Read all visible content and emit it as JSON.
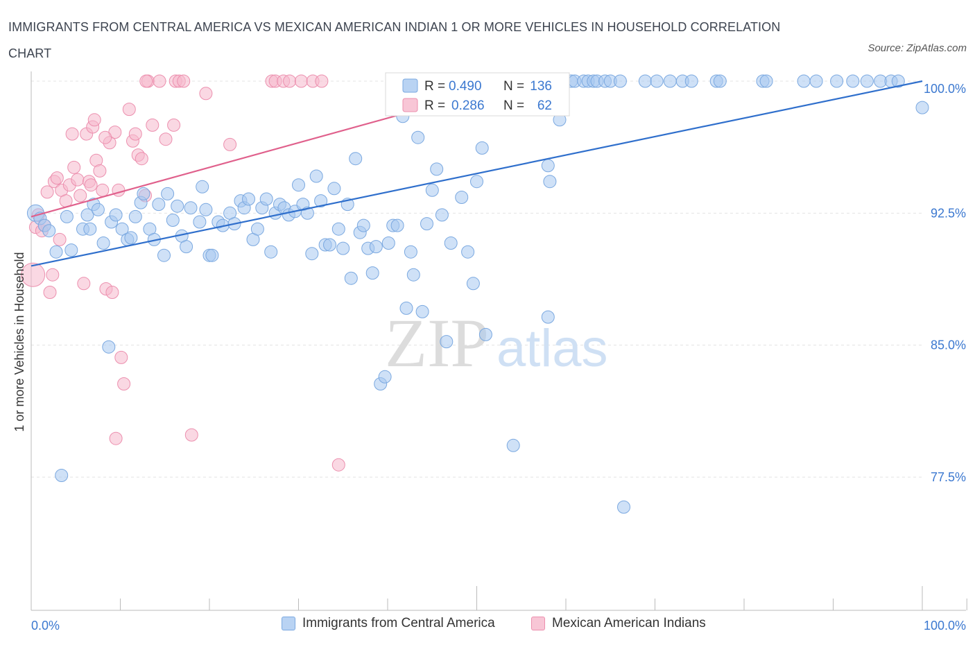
{
  "title": "IMMIGRANTS FROM CENTRAL AMERICA VS MEXICAN AMERICAN INDIAN 1 OR MORE VEHICLES IN HOUSEHOLD CORRELATION CHART",
  "source": "Source: ZipAtlas.com",
  "watermark": {
    "zip": "ZIP",
    "atlas": "atlas"
  },
  "colors": {
    "blue_fill": "#a8c8f0",
    "blue_stroke": "#7aa8e0",
    "blue_line": "#2f6fcc",
    "pink_fill": "#f5b8cc",
    "pink_stroke": "#ec8fae",
    "pink_line": "#e0608c",
    "axis_label": "#3b78d0",
    "grid": "#e3e3e3"
  },
  "legend": {
    "rows": [
      {
        "r_label": "R =",
        "r_value": "0.490",
        "n_label": "N =",
        "n_value": "136",
        "series": "blue"
      },
      {
        "r_label": "R =",
        "r_value": "0.286",
        "n_label": "N =",
        "n_value": "62",
        "series": "pink"
      }
    ]
  },
  "chart_data": {
    "type": "scatter",
    "ylabel": "1 or more Vehicles in Household",
    "xlim": [
      0,
      100
    ],
    "ylim": [
      70,
      100.6
    ],
    "x_tick_labels": [
      {
        "value": 0,
        "label": "0.0%"
      },
      {
        "value": 100,
        "label": "100.0%"
      }
    ],
    "y_tick_labels": [
      {
        "value": 100,
        "label": "100.0%"
      },
      {
        "value": 92.5,
        "label": "92.5%"
      },
      {
        "value": 85,
        "label": "85.0%"
      },
      {
        "value": 77.5,
        "label": "77.5%"
      }
    ],
    "series": [
      {
        "name": "Immigrants from Central America",
        "color": "blue",
        "trend": {
          "x0": 0,
          "y0": 89.5,
          "x1": 100,
          "y1": 100.0
        },
        "points": [
          [
            0.5,
            92.5
          ],
          [
            1,
            92.2
          ],
          [
            1.5,
            91.8
          ],
          [
            2,
            91.5
          ],
          [
            2.8,
            90.3
          ],
          [
            4,
            92.3
          ],
          [
            4.5,
            90.4
          ],
          [
            5.8,
            91.6
          ],
          [
            6.3,
            92.4
          ],
          [
            6.6,
            91.6
          ],
          [
            7,
            93.0
          ],
          [
            7.5,
            92.7
          ],
          [
            8.1,
            90.8
          ],
          [
            8.7,
            84.9
          ],
          [
            9,
            92.0
          ],
          [
            9.5,
            92.4
          ],
          [
            10.2,
            91.6
          ],
          [
            10.8,
            91.0
          ],
          [
            11.2,
            91.1
          ],
          [
            11.7,
            92.3
          ],
          [
            12.3,
            93.1
          ],
          [
            12.6,
            93.6
          ],
          [
            13.3,
            91.6
          ],
          [
            13.8,
            91.0
          ],
          [
            14.3,
            93.0
          ],
          [
            14.9,
            90.1
          ],
          [
            15.3,
            93.6
          ],
          [
            15.9,
            92.1
          ],
          [
            16.4,
            92.9
          ],
          [
            16.9,
            91.2
          ],
          [
            17.4,
            90.6
          ],
          [
            17.9,
            92.8
          ],
          [
            18.9,
            92.0
          ],
          [
            19.2,
            94.0
          ],
          [
            19.6,
            92.7
          ],
          [
            20,
            90.1
          ],
          [
            20.3,
            90.1
          ],
          [
            21,
            92.0
          ],
          [
            21.5,
            91.8
          ],
          [
            22.3,
            92.5
          ],
          [
            22.8,
            91.9
          ],
          [
            23.5,
            93.2
          ],
          [
            23.9,
            92.8
          ],
          [
            24.4,
            93.3
          ],
          [
            24.9,
            91.0
          ],
          [
            25.4,
            91.6
          ],
          [
            25.9,
            92.8
          ],
          [
            26.4,
            93.3
          ],
          [
            26.9,
            90.3
          ],
          [
            27.4,
            92.5
          ],
          [
            27.9,
            93.0
          ],
          [
            28.4,
            92.8
          ],
          [
            28.9,
            92.4
          ],
          [
            29.6,
            92.6
          ],
          [
            30,
            94.1
          ],
          [
            30.5,
            93.0
          ],
          [
            31.0,
            92.5
          ],
          [
            31.5,
            90.2
          ],
          [
            32.0,
            94.6
          ],
          [
            32.5,
            93.2
          ],
          [
            33,
            90.7
          ],
          [
            33.5,
            90.7
          ],
          [
            34,
            93.9
          ],
          [
            34.5,
            91.6
          ],
          [
            35,
            90.5
          ],
          [
            35.5,
            93.0
          ],
          [
            35.9,
            88.8
          ],
          [
            36.4,
            95.6
          ],
          [
            36.9,
            91.4
          ],
          [
            37.3,
            91.8
          ],
          [
            37.8,
            90.5
          ],
          [
            38.3,
            89.1
          ],
          [
            38.7,
            90.6
          ],
          [
            39.2,
            82.8
          ],
          [
            39.7,
            83.2
          ],
          [
            40.1,
            90.8
          ],
          [
            40.6,
            91.8
          ],
          [
            41.1,
            91.8
          ],
          [
            41.7,
            98.0
          ],
          [
            42.1,
            87.1
          ],
          [
            42.6,
            90.3
          ],
          [
            42.9,
            89.0
          ],
          [
            43.4,
            96.8
          ],
          [
            43.9,
            86.9
          ],
          [
            44.4,
            91.9
          ],
          [
            45.0,
            93.8
          ],
          [
            45.5,
            95.0
          ],
          [
            46.1,
            92.4
          ],
          [
            46.6,
            85.2
          ],
          [
            47.1,
            90.8
          ],
          [
            48.3,
            93.4
          ],
          [
            49.0,
            90.3
          ],
          [
            49.6,
            88.5
          ],
          [
            50.0,
            94.3
          ],
          [
            50.6,
            96.2
          ],
          [
            51.0,
            85.6
          ],
          [
            51.9,
            98.4
          ],
          [
            52.9,
            100
          ],
          [
            53.5,
            100
          ],
          [
            54.1,
            79.3
          ],
          [
            54.8,
            100
          ],
          [
            56.1,
            100
          ],
          [
            57.3,
            100
          ],
          [
            58,
            95.2
          ],
          [
            58,
            86.6
          ],
          [
            59.3,
            97.8
          ],
          [
            60.6,
            100
          ],
          [
            61.0,
            100
          ],
          [
            62.0,
            100
          ],
          [
            62.5,
            100
          ],
          [
            63.1,
            100
          ],
          [
            63.5,
            100
          ],
          [
            64.4,
            100
          ],
          [
            65.0,
            100
          ],
          [
            66.1,
            100
          ],
          [
            66.5,
            75.8
          ],
          [
            68.9,
            100
          ],
          [
            70.2,
            100
          ],
          [
            71.7,
            100
          ],
          [
            73.1,
            100
          ],
          [
            74.1,
            100
          ],
          [
            76.9,
            100
          ],
          [
            77.3,
            100
          ],
          [
            82.1,
            100
          ],
          [
            82.5,
            100
          ],
          [
            86.7,
            100
          ],
          [
            88.1,
            100
          ],
          [
            90.4,
            100
          ],
          [
            92.2,
            100
          ],
          [
            93.8,
            100
          ],
          [
            95.3,
            100
          ],
          [
            96.5,
            100
          ],
          [
            97.3,
            100
          ],
          [
            100,
            98.5
          ],
          [
            58.2,
            94.3
          ],
          [
            3.4,
            77.6
          ]
        ]
      },
      {
        "name": "Mexican American Indians",
        "color": "pink",
        "trend": {
          "x0": 0,
          "y0": 92.3,
          "x1": 55,
          "y1": 100.0
        },
        "points": [
          [
            0.2,
            89.0
          ],
          [
            0.5,
            91.7
          ],
          [
            0.8,
            92.4
          ],
          [
            1.2,
            91.5
          ],
          [
            1.5,
            91.8
          ],
          [
            1.8,
            93.7
          ],
          [
            2.1,
            88.0
          ],
          [
            2.6,
            94.3
          ],
          [
            2.9,
            94.5
          ],
          [
            3.2,
            91.0
          ],
          [
            3.4,
            93.8
          ],
          [
            3.9,
            93.2
          ],
          [
            4.3,
            94.1
          ],
          [
            4.8,
            95.1
          ],
          [
            5.2,
            94.4
          ],
          [
            5.5,
            93.5
          ],
          [
            5.9,
            88.5
          ],
          [
            6.2,
            97.0
          ],
          [
            6.5,
            94.3
          ],
          [
            6.9,
            97.4
          ],
          [
            7.3,
            95.5
          ],
          [
            7.7,
            94.9
          ],
          [
            8.0,
            93.8
          ],
          [
            8.4,
            88.2
          ],
          [
            8.8,
            96.5
          ],
          [
            9.1,
            88.0
          ],
          [
            9.4,
            97.1
          ],
          [
            9.8,
            93.8
          ],
          [
            10.1,
            84.3
          ],
          [
            10.4,
            82.8
          ],
          [
            11.0,
            98.4
          ],
          [
            11.4,
            96.6
          ],
          [
            11.7,
            97.0
          ],
          [
            12.0,
            95.8
          ],
          [
            12.4,
            95.6
          ],
          [
            12.8,
            93.5
          ],
          [
            13.1,
            100
          ],
          [
            14.4,
            100
          ],
          [
            15.1,
            96.7
          ],
          [
            16.0,
            97.5
          ],
          [
            16.2,
            100
          ],
          [
            16.6,
            100
          ],
          [
            17.1,
            100
          ],
          [
            18.0,
            79.9
          ],
          [
            19.6,
            99.3
          ],
          [
            22.3,
            96.4
          ],
          [
            27.0,
            100
          ],
          [
            27.4,
            100
          ],
          [
            28.3,
            100
          ],
          [
            29.0,
            100
          ],
          [
            30.3,
            100
          ],
          [
            31.6,
            100
          ],
          [
            32.6,
            100
          ],
          [
            34.5,
            78.2
          ],
          [
            2.4,
            89.0
          ],
          [
            4.6,
            97.0
          ],
          [
            8.3,
            96.8
          ],
          [
            9.5,
            79.7
          ],
          [
            7.1,
            97.8
          ],
          [
            12.9,
            100
          ],
          [
            13.6,
            97.5
          ],
          [
            6.7,
            94.1
          ]
        ]
      }
    ],
    "grid": true,
    "legend_placement": "top-center"
  },
  "bottom_legend": [
    {
      "label": "Immigrants from Central America",
      "series": "blue"
    },
    {
      "label": "Mexican American Indians",
      "series": "pink"
    }
  ]
}
